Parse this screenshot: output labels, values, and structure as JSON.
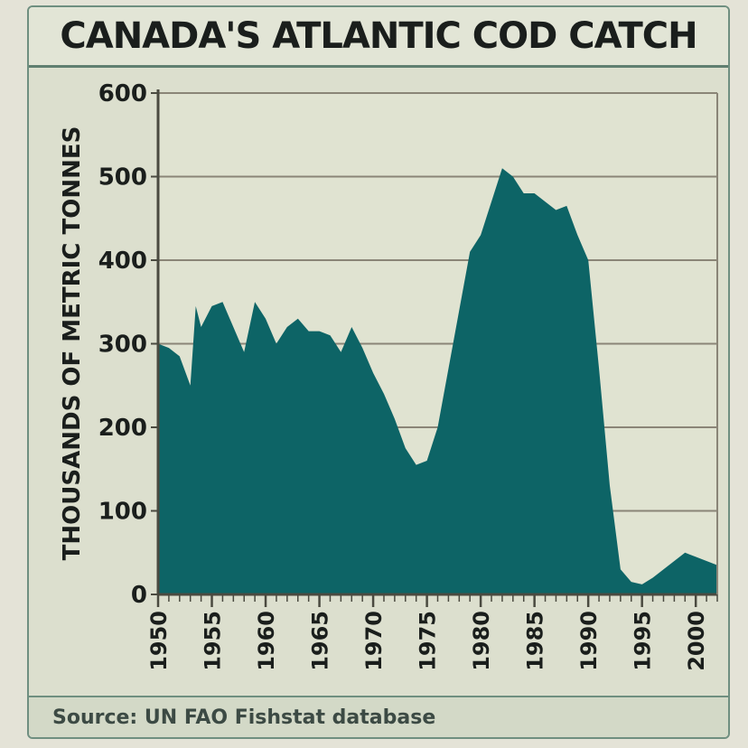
{
  "chart_data": {
    "type": "area",
    "title": "CANADA'S ATLANTIC COD CATCH",
    "ylabel": "THOUSANDS OF METRIC TONNES",
    "xlabel": "",
    "source": "Source: UN FAO Fishstat database",
    "xlim": [
      1950,
      2002
    ],
    "ylim": [
      0,
      600
    ],
    "yticks": [
      0,
      100,
      200,
      300,
      400,
      500,
      600
    ],
    "xticks": [
      1950,
      1955,
      1960,
      1965,
      1970,
      1975,
      1980,
      1985,
      1990,
      1995,
      2000
    ],
    "grid": true,
    "fill_color": "#0d6466",
    "series": [
      {
        "x": [
          1950,
          1951,
          1952,
          1953,
          1953.5,
          1954,
          1955,
          1956,
          1957,
          1958,
          1959,
          1960,
          1961,
          1962,
          1963,
          1964,
          1965,
          1966,
          1967,
          1968,
          1969,
          1970,
          1971,
          1972,
          1973,
          1974,
          1975,
          1976,
          1977,
          1978,
          1979,
          1980,
          1981,
          1982,
          1983,
          1984,
          1985,
          1986,
          1987,
          1988,
          1989,
          1990,
          1991,
          1992,
          1993,
          1994,
          1995,
          1996,
          1997,
          1998,
          1999,
          2000,
          2001,
          2002
        ],
        "y": [
          300,
          295,
          285,
          250,
          345,
          320,
          345,
          350,
          320,
          290,
          350,
          330,
          300,
          320,
          330,
          315,
          315,
          310,
          290,
          320,
          295,
          265,
          240,
          210,
          175,
          155,
          160,
          200,
          270,
          340,
          410,
          430,
          470,
          510,
          500,
          480,
          480,
          470,
          460,
          465,
          430,
          400,
          270,
          130,
          30,
          15,
          12,
          20,
          30,
          40,
          50,
          45,
          40,
          35
        ]
      }
    ]
  }
}
